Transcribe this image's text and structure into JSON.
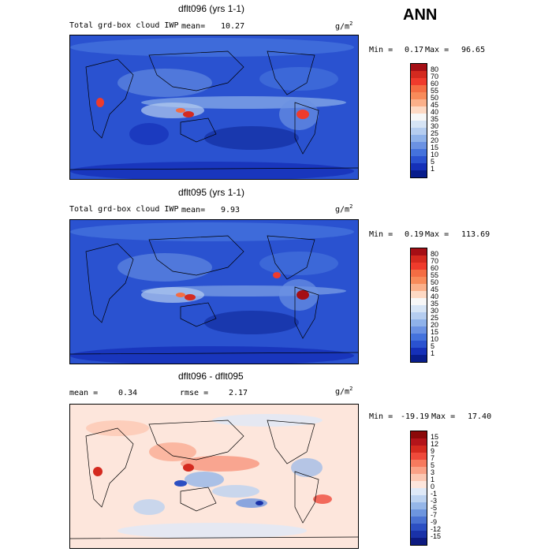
{
  "header": {
    "season": "ANN"
  },
  "chart_data": [
    {
      "type": "heatmap",
      "title": "dflt096 (yrs 1-1)",
      "subtitle": "Total grd-box cloud IWP",
      "mean_label": "mean=",
      "mean": "10.27",
      "units": "g/m",
      "units_exp": "2",
      "min_label": "Min =",
      "min": "0.17",
      "max_label": "Max =",
      "max": "96.65",
      "levels": [
        "80",
        "70",
        "60",
        "55",
        "50",
        "45",
        "40",
        "35",
        "30",
        "25",
        "20",
        "15",
        "10",
        "5",
        "1"
      ],
      "colors": [
        "#a50f15",
        "#d42a1f",
        "#ef3b2c",
        "#f46d43",
        "#f88b5a",
        "#fbb08a",
        "#fdd9c4",
        "#f7f7f7",
        "#d6e4f5",
        "#b5cdf0",
        "#8fb2ea",
        "#6b92e3",
        "#4472dc",
        "#2a52d0",
        "#1530b8",
        "#081d8c"
      ]
    },
    {
      "type": "heatmap",
      "title": "dflt095 (yrs 1-1)",
      "subtitle": "Total grd-box cloud IWP",
      "mean_label": "mean=",
      "mean": "9.93",
      "units": "g/m",
      "units_exp": "2",
      "min_label": "Min =",
      "min": "0.19",
      "max_label": "Max =",
      "max": "113.69",
      "levels": [
        "80",
        "70",
        "60",
        "55",
        "50",
        "45",
        "40",
        "35",
        "30",
        "25",
        "20",
        "15",
        "10",
        "5",
        "1"
      ],
      "colors": [
        "#a50f15",
        "#d42a1f",
        "#ef3b2c",
        "#f46d43",
        "#f88b5a",
        "#fbb08a",
        "#fdd9c4",
        "#f7f7f7",
        "#d6e4f5",
        "#b5cdf0",
        "#8fb2ea",
        "#6b92e3",
        "#4472dc",
        "#2a52d0",
        "#1530b8",
        "#081d8c"
      ]
    },
    {
      "type": "heatmap",
      "title": "dflt096 - dflt095",
      "mean_label": "mean =",
      "mean": "0.34",
      "rmse_label": "rmse =",
      "rmse": "2.17",
      "units": "g/m",
      "units_exp": "2",
      "min_label": "Min =",
      "min": "-19.19",
      "max_label": "Max =",
      "max": "17.40",
      "levels": [
        "15",
        "12",
        "9",
        "7",
        "5",
        "3",
        "1",
        "0",
        "-1",
        "-3",
        "-5",
        "-7",
        "-9",
        "-12",
        "-15"
      ],
      "colors": [
        "#8b0a0a",
        "#b3141a",
        "#d42a1f",
        "#ef4a3b",
        "#f77a5e",
        "#faa287",
        "#fcc8b3",
        "#fde6dc",
        "#dfe9f7",
        "#bcd2f0",
        "#95b6e8",
        "#6d95de",
        "#4a72d2",
        "#2c4fc2",
        "#1a32a8",
        "#0d1a80"
      ]
    }
  ]
}
